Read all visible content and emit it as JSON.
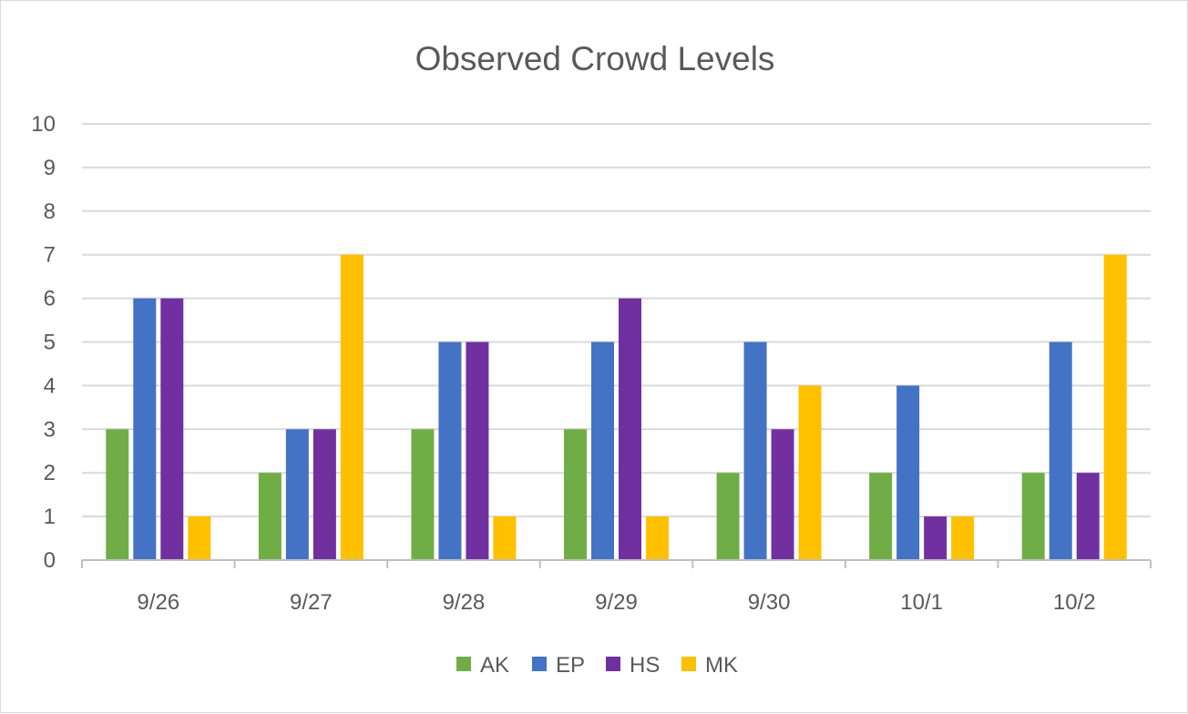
{
  "chart_data": {
    "type": "bar",
    "title": "Observed Crowd Levels",
    "xlabel": "",
    "ylabel": "",
    "ylim": [
      0,
      10
    ],
    "yticks": [
      "0",
      "1",
      "2",
      "3",
      "4",
      "5",
      "6",
      "7",
      "8",
      "9",
      "10"
    ],
    "categories": [
      "9/26",
      "9/27",
      "9/28",
      "9/29",
      "9/30",
      "10/1",
      "10/2"
    ],
    "series": [
      {
        "name": "AK",
        "color": "#70ad47",
        "values": [
          3,
          2,
          3,
          3,
          2,
          2,
          2
        ]
      },
      {
        "name": "EP",
        "color": "#4472c4",
        "values": [
          6,
          3,
          5,
          5,
          5,
          4,
          5
        ]
      },
      {
        "name": "HS",
        "color": "#7030a0",
        "values": [
          6,
          3,
          5,
          6,
          3,
          1,
          2
        ]
      },
      {
        "name": "MK",
        "color": "#ffc000",
        "values": [
          1,
          7,
          1,
          1,
          4,
          1,
          7
        ]
      }
    ],
    "grid": true,
    "legend": "bottom"
  }
}
